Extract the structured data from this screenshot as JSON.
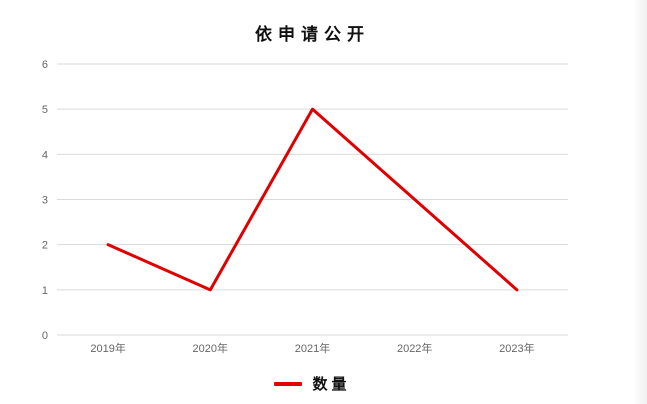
{
  "page": {
    "background_color": "#ffffff"
  },
  "chart_data": {
    "type": "line",
    "title": "依申请公开",
    "categories": [
      "2019年",
      "2020年",
      "2021年",
      "2022年",
      "2023年"
    ],
    "series": [
      {
        "name": "数量",
        "values": [
          2,
          1,
          5,
          3,
          1
        ],
        "color": "#e00000"
      }
    ],
    "xlabel": "",
    "ylabel": "",
    "ylim": [
      0,
      6
    ],
    "ytick_interval": 1,
    "yticks": [
      0,
      1,
      2,
      3,
      4,
      5,
      6
    ],
    "grid": true,
    "gridline_color": "#d9d9d9",
    "tick_label_color": "#666666",
    "line_width": 3,
    "legend_position": "bottom"
  }
}
